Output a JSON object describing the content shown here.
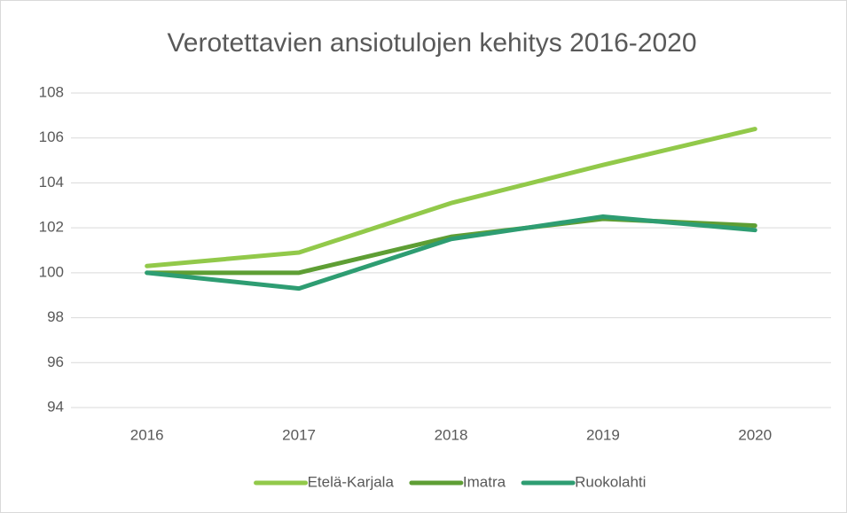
{
  "chart_data": {
    "type": "line",
    "title": "Verotettavien ansiotulojen kehitys 2016-2020",
    "categories": [
      "2016",
      "2017",
      "2018",
      "2019",
      "2020"
    ],
    "series": [
      {
        "name": "Etelä-Karjala",
        "color": "#92c94a",
        "values": [
          100.3,
          100.9,
          103.1,
          104.8,
          106.4
        ]
      },
      {
        "name": "Imatra",
        "color": "#5e9e34",
        "values": [
          100.0,
          100.0,
          101.6,
          102.4,
          102.1
        ]
      },
      {
        "name": "Ruokolahti",
        "color": "#2e9d72",
        "values": [
          100.0,
          99.3,
          101.5,
          102.5,
          101.9
        ]
      }
    ],
    "ylim": [
      94,
      108
    ],
    "yticks": [
      94,
      96,
      98,
      100,
      102,
      104,
      106,
      108
    ],
    "grid": true,
    "legend": "bottom"
  }
}
